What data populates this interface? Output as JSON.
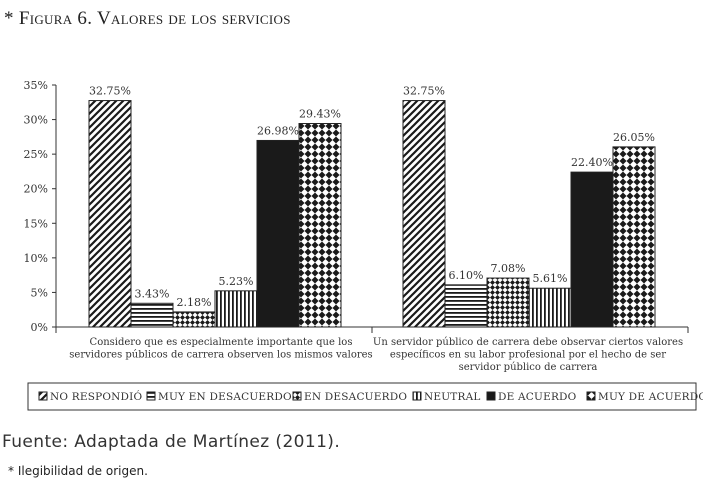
{
  "figure": {
    "title": "* Figura 6. Valores de los servicios",
    "source": "Fuente: Adaptada de Martínez (2011).",
    "footnote": "* Ilegibilidad de origen."
  },
  "colors": {
    "text": "#333333",
    "axis": "#333333",
    "bar_stroke": "#222222",
    "solid": "#1a1a1a"
  },
  "chart_data": {
    "type": "bar",
    "title": "",
    "xlabel": "",
    "ylabel": "",
    "ylim": [
      0,
      35
    ],
    "yticks": [
      0,
      5,
      10,
      15,
      20,
      25,
      30,
      35
    ],
    "ytick_labels": [
      "0%",
      "5%",
      "10%",
      "15%",
      "20%",
      "25%",
      "30%",
      "35%"
    ],
    "grid": false,
    "legend_position": "bottom",
    "categories": [
      [
        "Considero que es especialmente importante que los",
        "servidores públicos de carrera observen los mismos valores"
      ],
      [
        "Un servidor público de carrera debe observar ciertos valores",
        "específicos en su labor profesional por el hecho de ser",
        "servidor público de carrera"
      ]
    ],
    "series": [
      {
        "name": "NO RESPONDIÓ",
        "pattern": "diag-dense",
        "values": [
          32.75,
          32.75
        ],
        "labels": [
          "32.75%",
          "32.75%"
        ]
      },
      {
        "name": "MUY EN DESACUERDO",
        "pattern": "horiz",
        "values": [
          3.43,
          6.1
        ],
        "labels": [
          "3.43%",
          "6.10%"
        ]
      },
      {
        "name": "EN DESACUERDO",
        "pattern": "check-small",
        "values": [
          2.18,
          7.08
        ],
        "labels": [
          "2.18%",
          "7.08%"
        ]
      },
      {
        "name": "NEUTRAL",
        "pattern": "vert",
        "values": [
          5.23,
          5.61
        ],
        "labels": [
          "5.23%",
          "5.61%"
        ]
      },
      {
        "name": "DE ACUERDO",
        "pattern": "solid",
        "values": [
          26.98,
          22.4
        ],
        "labels": [
          "26.98%",
          "22.40%"
        ]
      },
      {
        "name": "MUY DE ACUERDO",
        "pattern": "check-large",
        "values": [
          29.43,
          26.05
        ],
        "labels": [
          "29.43%",
          "26.05%"
        ]
      }
    ]
  }
}
